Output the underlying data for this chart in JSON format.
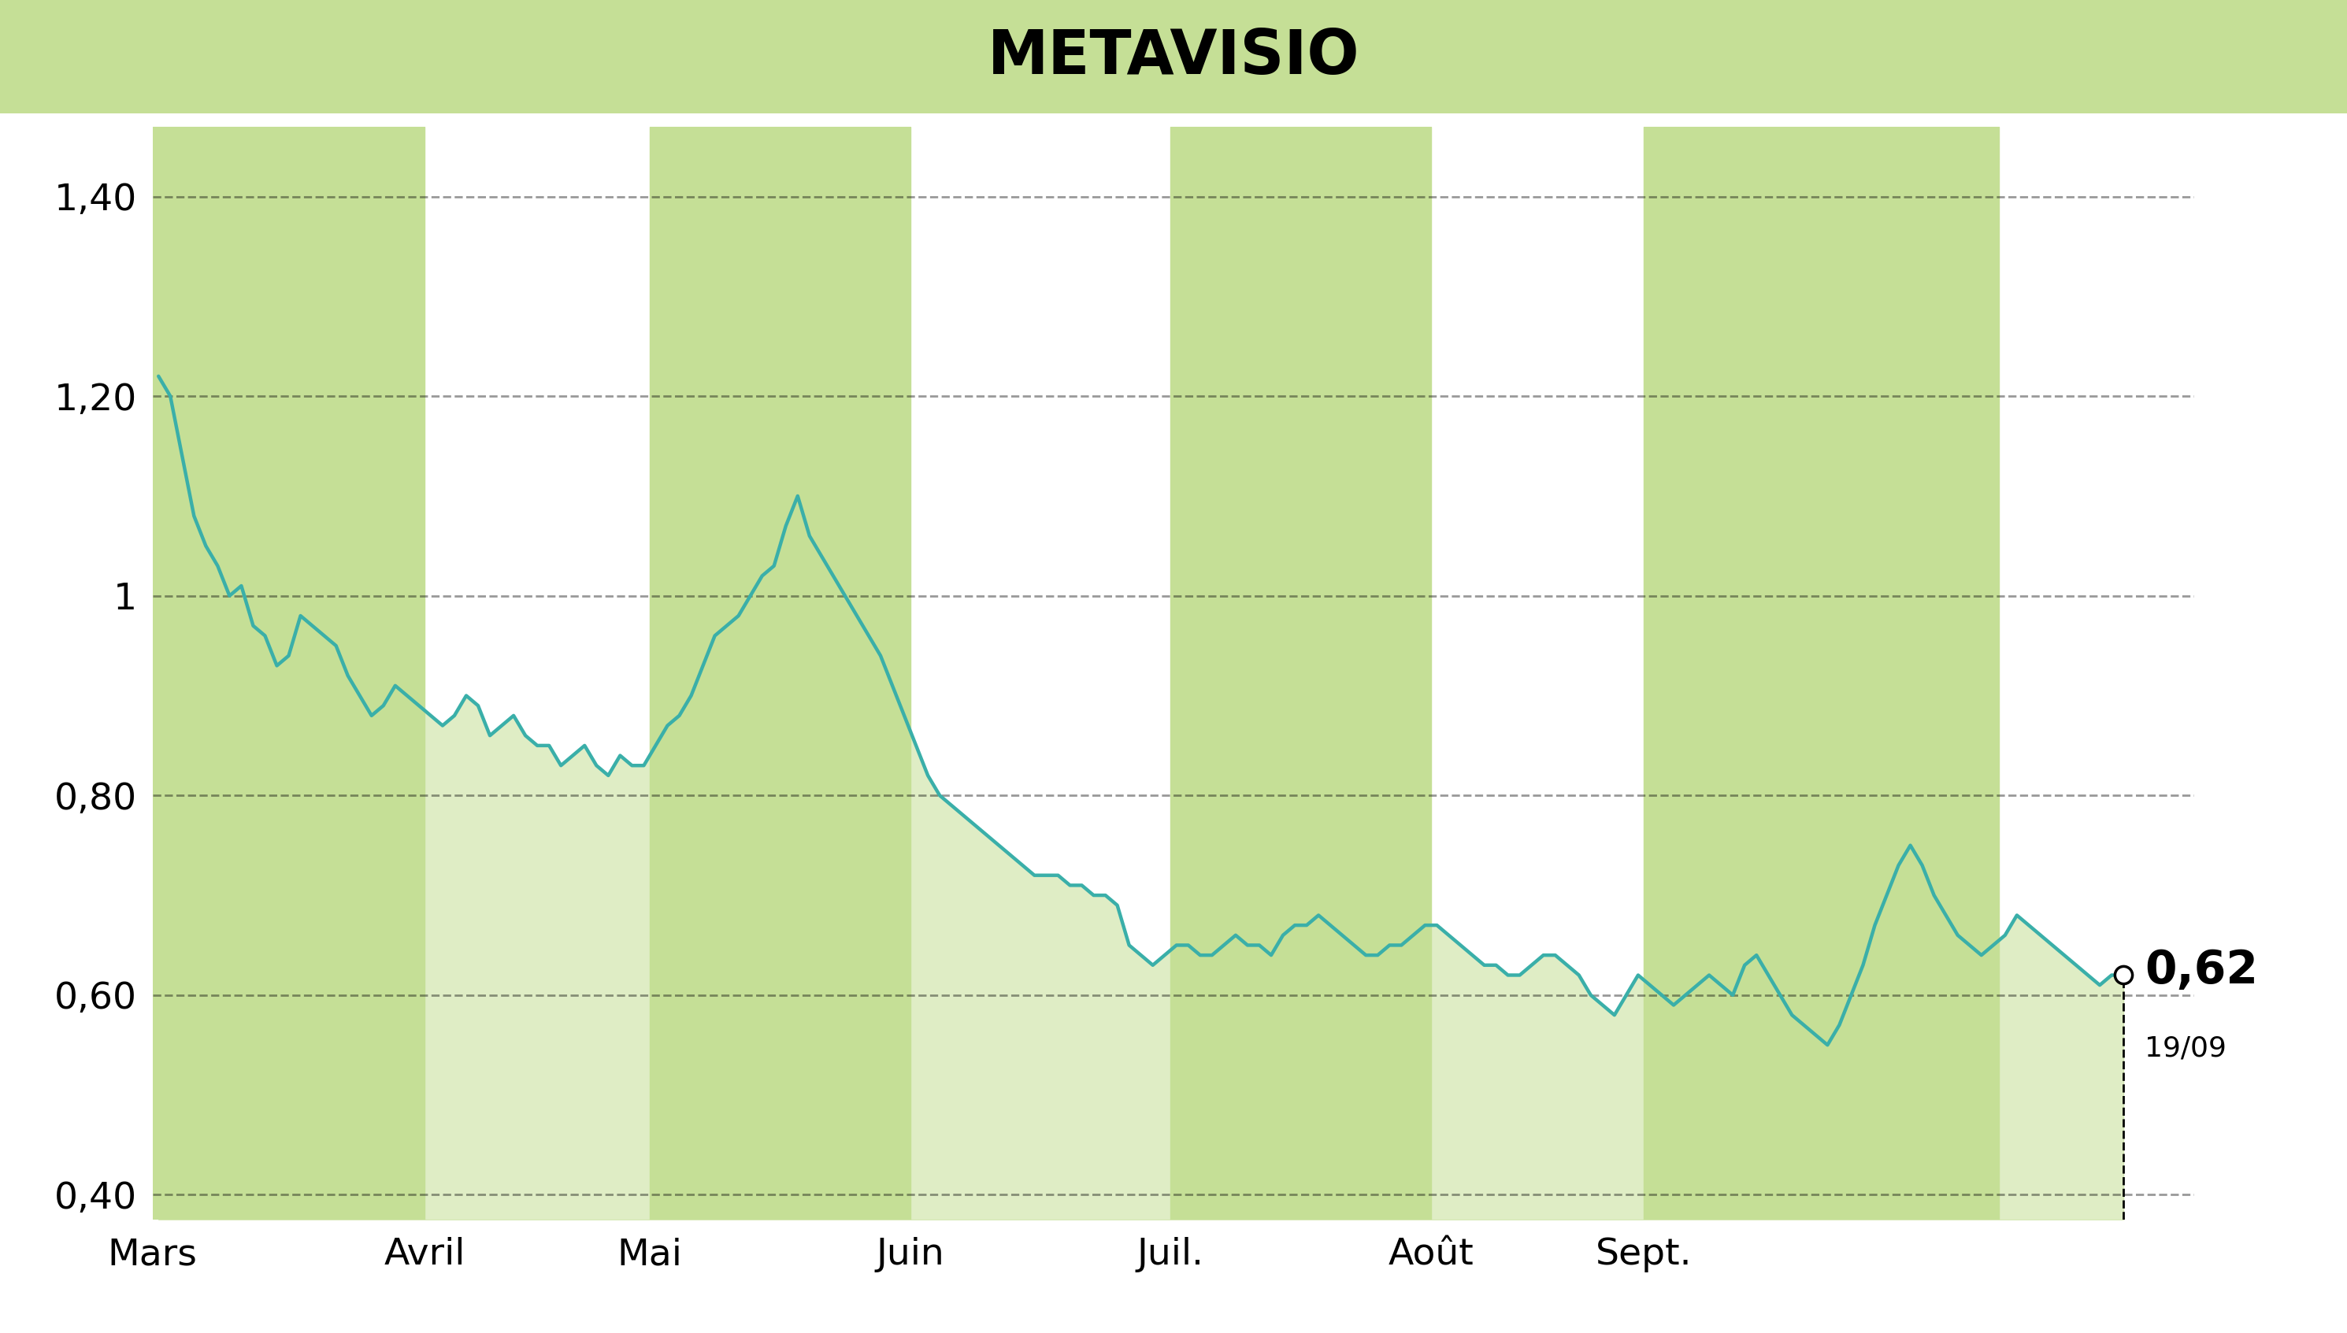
{
  "title": "METAVISIO",
  "title_fontsize": 56,
  "title_fontweight": "bold",
  "title_bg_color": "#c5df96",
  "background_color": "#ffffff",
  "line_color": "#3aafa9",
  "line_width": 3.2,
  "fill_color": "#c5df96",
  "fill_alpha": 0.55,
  "ytick_vals": [
    0.4,
    0.6,
    0.8,
    1.0,
    1.2,
    1.4
  ],
  "ytick_labels": [
    "0,40",
    "0,60",
    "0,80",
    "1",
    "1,20",
    "1,40"
  ],
  "ylim": [
    0.375,
    1.47
  ],
  "month_labels": [
    "Mars",
    "Avril",
    "Mai",
    "Juin",
    "Juil.",
    "Août",
    "Sept."
  ],
  "last_price_label": "0,62",
  "last_date_label": "19/09",
  "grid_linestyle": "--",
  "grid_color": "#000000",
  "grid_alpha": 0.4,
  "grid_linewidth": 2.0,
  "band_color": "#c5df96",
  "shaded_months": [
    0,
    2,
    4,
    6
  ],
  "prices": [
    1.22,
    1.2,
    1.14,
    1.08,
    1.05,
    1.03,
    1.0,
    1.01,
    0.97,
    0.96,
    0.93,
    0.94,
    0.98,
    0.97,
    0.96,
    0.95,
    0.92,
    0.9,
    0.88,
    0.89,
    0.91,
    0.9,
    0.89,
    0.88,
    0.87,
    0.88,
    0.9,
    0.89,
    0.86,
    0.87,
    0.88,
    0.86,
    0.85,
    0.85,
    0.83,
    0.84,
    0.85,
    0.83,
    0.82,
    0.84,
    0.83,
    0.83,
    0.85,
    0.87,
    0.88,
    0.9,
    0.93,
    0.96,
    0.97,
    0.98,
    1.0,
    1.02,
    1.03,
    1.07,
    1.1,
    1.06,
    1.04,
    1.02,
    1.0,
    0.98,
    0.96,
    0.94,
    0.91,
    0.88,
    0.85,
    0.82,
    0.8,
    0.79,
    0.78,
    0.77,
    0.76,
    0.75,
    0.74,
    0.73,
    0.72,
    0.72,
    0.72,
    0.71,
    0.71,
    0.7,
    0.7,
    0.69,
    0.65,
    0.64,
    0.63,
    0.64,
    0.65,
    0.65,
    0.64,
    0.64,
    0.65,
    0.66,
    0.65,
    0.65,
    0.64,
    0.66,
    0.67,
    0.67,
    0.68,
    0.67,
    0.66,
    0.65,
    0.64,
    0.64,
    0.65,
    0.65,
    0.66,
    0.67,
    0.67,
    0.66,
    0.65,
    0.64,
    0.63,
    0.63,
    0.62,
    0.62,
    0.63,
    0.64,
    0.64,
    0.63,
    0.62,
    0.6,
    0.59,
    0.58,
    0.6,
    0.62,
    0.61,
    0.6,
    0.59,
    0.6,
    0.61,
    0.62,
    0.61,
    0.6,
    0.63,
    0.64,
    0.62,
    0.6,
    0.58,
    0.57,
    0.56,
    0.55,
    0.57,
    0.6,
    0.63,
    0.67,
    0.7,
    0.73,
    0.75,
    0.73,
    0.7,
    0.68,
    0.66,
    0.65,
    0.64,
    0.65,
    0.66,
    0.68,
    0.67,
    0.66,
    0.65,
    0.64,
    0.63,
    0.62,
    0.61,
    0.62,
    0.62
  ],
  "month_boundaries": [
    0,
    23,
    42,
    64,
    86,
    108,
    126,
    156
  ]
}
